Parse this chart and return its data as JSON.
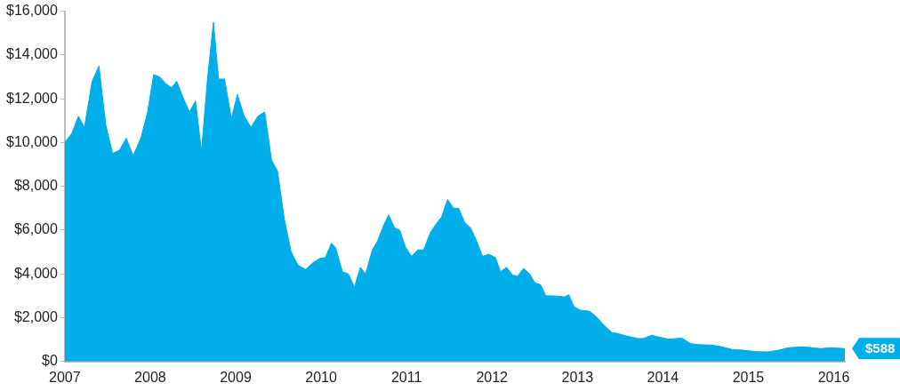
{
  "chart_data": {
    "type": "area",
    "x": [
      2007.0,
      2007.08,
      2007.16,
      2007.23,
      2007.32,
      2007.4,
      2007.48,
      2007.56,
      2007.64,
      2007.72,
      2007.8,
      2007.89,
      2007.97,
      2008.04,
      2008.11,
      2008.18,
      2008.25,
      2008.31,
      2008.39,
      2008.46,
      2008.53,
      2008.6,
      2008.67,
      2008.74,
      2008.8,
      2008.87,
      2008.95,
      2009.02,
      2009.1,
      2009.18,
      2009.26,
      2009.34,
      2009.42,
      2009.49,
      2009.57,
      2009.65,
      2009.73,
      2009.82,
      2009.9,
      2009.98,
      2010.05,
      2010.12,
      2010.17,
      2010.25,
      2010.32,
      2010.39,
      2010.46,
      2010.52,
      2010.6,
      2010.66,
      2010.73,
      2010.79,
      2010.86,
      2010.92,
      2010.99,
      2011.06,
      2011.13,
      2011.2,
      2011.28,
      2011.35,
      2011.41,
      2011.48,
      2011.55,
      2011.61,
      2011.68,
      2011.75,
      2011.82,
      2011.89,
      2011.96,
      2012.04,
      2012.1,
      2012.17,
      2012.24,
      2012.3,
      2012.37,
      2012.44,
      2012.5,
      2012.57,
      2012.63,
      2012.71,
      2012.78,
      2012.85,
      2012.9,
      2012.96,
      2013.03,
      2013.14,
      2013.22,
      2013.3,
      2013.41,
      2013.45,
      2013.54,
      2013.65,
      2013.71,
      2013.77,
      2013.87,
      2013.95,
      2014.07,
      2014.22,
      2014.33,
      2014.42,
      2014.57,
      2014.66,
      2014.81,
      2014.93,
      2015.09,
      2015.23,
      2015.36,
      2015.47,
      2015.64,
      2015.85,
      2015.96,
      2016.13
    ],
    "series": [
      {
        "color": "#00aeea",
        "values": [
          10000,
          10400,
          11200,
          10700,
          12800,
          13500,
          10800,
          9500,
          9650,
          10200,
          9400,
          10200,
          11400,
          13100,
          13000,
          12700,
          12500,
          12800,
          12000,
          11400,
          11900,
          9600,
          12900,
          15500,
          12900,
          12900,
          11100,
          12200,
          11200,
          10700,
          11200,
          11400,
          9200,
          8700,
          6500,
          5000,
          4400,
          4200,
          4500,
          4700,
          4750,
          5400,
          5200,
          4100,
          4000,
          3400,
          4300,
          4000,
          5100,
          5500,
          6200,
          6700,
          6100,
          6000,
          5200,
          4800,
          5100,
          5100,
          5900,
          6300,
          6600,
          7400,
          7000,
          7000,
          6350,
          6100,
          5500,
          4800,
          4900,
          4750,
          4100,
          4300,
          3950,
          3900,
          4250,
          4000,
          3600,
          3500,
          3000,
          3000,
          2980,
          2950,
          3050,
          2500,
          2350,
          2300,
          2050,
          1700,
          1300,
          1300,
          1200,
          1100,
          1050,
          1050,
          1200,
          1120,
          1020,
          1070,
          810,
          770,
          750,
          700,
          550,
          520,
          450,
          440,
          520,
          630,
          670,
          590,
          630,
          588
        ]
      }
    ],
    "xlim": [
      2007,
      2016.13
    ],
    "xticks": [
      2007,
      2008,
      2009,
      2010,
      2011,
      2012,
      2013,
      2014,
      2015,
      2016
    ],
    "ylim": [
      0,
      16000
    ],
    "yticks": [
      {
        "value": 0,
        "label": "$0"
      },
      {
        "value": 2000,
        "label": "$2,000"
      },
      {
        "value": 4000,
        "label": "$4,000"
      },
      {
        "value": 6000,
        "label": "$6,000"
      },
      {
        "value": 8000,
        "label": "$8,000"
      },
      {
        "value": 10000,
        "label": "$10,000"
      },
      {
        "value": 12000,
        "label": "$12,000"
      },
      {
        "value": 14000,
        "label": "$14,000"
      },
      {
        "value": 16000,
        "label": "$16,000"
      }
    ],
    "annotations": [
      {
        "text": "$588",
        "x": 2016.13,
        "y": 588
      }
    ]
  }
}
